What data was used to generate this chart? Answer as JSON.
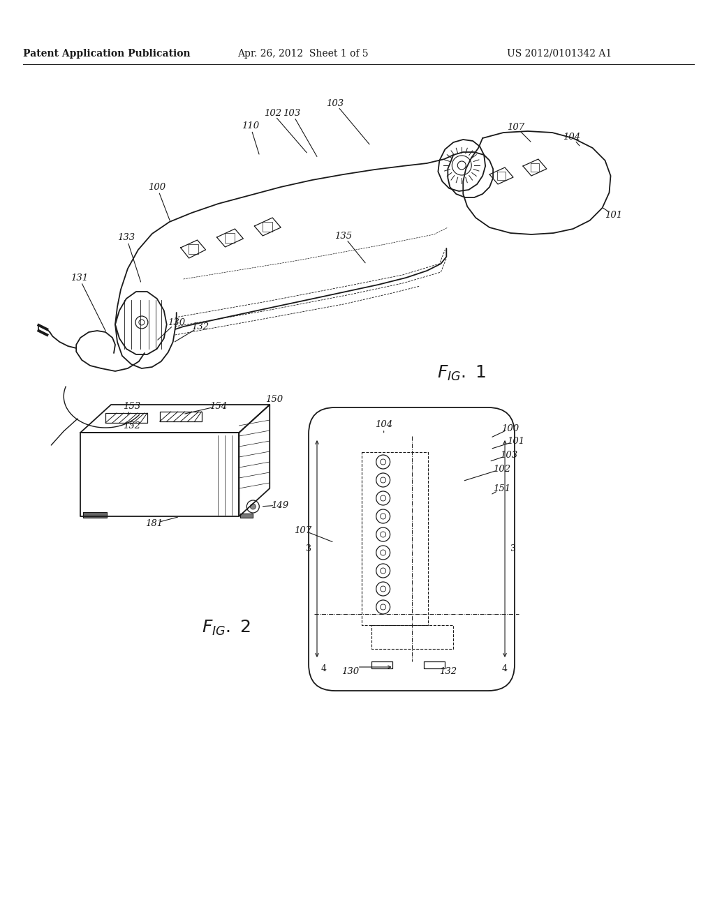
{
  "bg_color": "#ffffff",
  "header_left": "Patent Application Publication",
  "header_mid": "Apr. 26, 2012  Sheet 1 of 5",
  "header_right": "US 2012/0101342 A1",
  "line_color": "#1a1a1a"
}
